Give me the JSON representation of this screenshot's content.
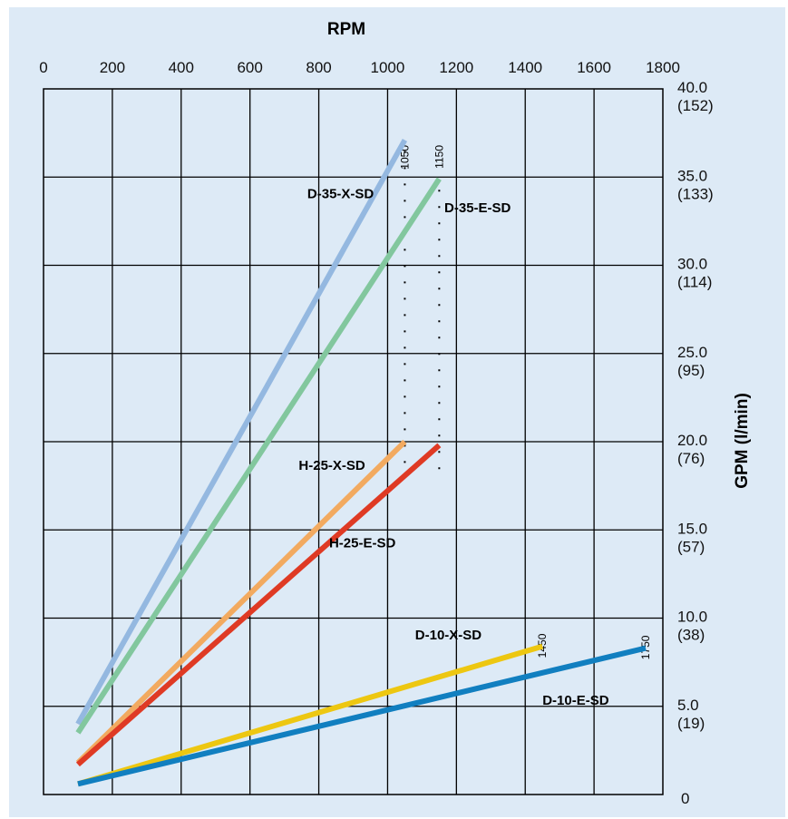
{
  "chart_data": {
    "type": "line",
    "title": "",
    "xlabel": "RPM",
    "ylabel": "GPM (l/min)",
    "xlim": [
      0,
      1800
    ],
    "ylim": [
      0,
      40
    ],
    "grid": true,
    "x_ticks": [
      "0",
      "200",
      "400",
      "600",
      "800",
      "1000",
      "1200",
      "1400",
      "1600",
      "1800"
    ],
    "y_ticks": [
      {
        "value": 0,
        "gpm": "0",
        "lpm": ""
      },
      {
        "value": 5,
        "gpm": "5.0",
        "lpm": "(19)"
      },
      {
        "value": 10,
        "gpm": "10.0",
        "lpm": "(38)"
      },
      {
        "value": 15,
        "gpm": "15.0",
        "lpm": "(57)"
      },
      {
        "value": 20,
        "gpm": "20.0",
        "lpm": "(76)"
      },
      {
        "value": 25,
        "gpm": "25.0",
        "lpm": "(95)"
      },
      {
        "value": 30,
        "gpm": "30.0",
        "lpm": "(114)"
      },
      {
        "value": 35,
        "gpm": "35.0",
        "lpm": "(133)"
      },
      {
        "value": 40,
        "gpm": "40.0",
        "lpm": "(152)"
      }
    ],
    "series": [
      {
        "name": "D-35-X-SD",
        "color": "#94b8e0",
        "points": [
          [
            100,
            4.0
          ],
          [
            1050,
            37.1
          ]
        ]
      },
      {
        "name": "D-35-E-SD",
        "color": "#82c79e",
        "points": [
          [
            100,
            3.5
          ],
          [
            1150,
            34.9
          ]
        ]
      },
      {
        "name": "H-25-X-SD",
        "color": "#f2aa60",
        "points": [
          [
            100,
            1.8
          ],
          [
            1050,
            20.0
          ]
        ]
      },
      {
        "name": "H-25-E-SD",
        "color": "#df3a24",
        "points": [
          [
            100,
            1.7
          ],
          [
            1150,
            19.8
          ]
        ]
      },
      {
        "name": "D-10-X-SD",
        "color": "#edc711",
        "points": [
          [
            100,
            0.6
          ],
          [
            1450,
            8.4
          ]
        ]
      },
      {
        "name": "D-10-E-SD",
        "color": "#117fc0",
        "points": [
          [
            100,
            0.6
          ],
          [
            1750,
            8.3
          ]
        ]
      }
    ],
    "max_rpm_markers": [
      {
        "rpm": 1050,
        "label": "1050"
      },
      {
        "rpm": 1150,
        "label": "1150"
      },
      {
        "rpm": 1450,
        "label": "1450"
      },
      {
        "rpm": 1750,
        "label": "1750"
      }
    ]
  }
}
